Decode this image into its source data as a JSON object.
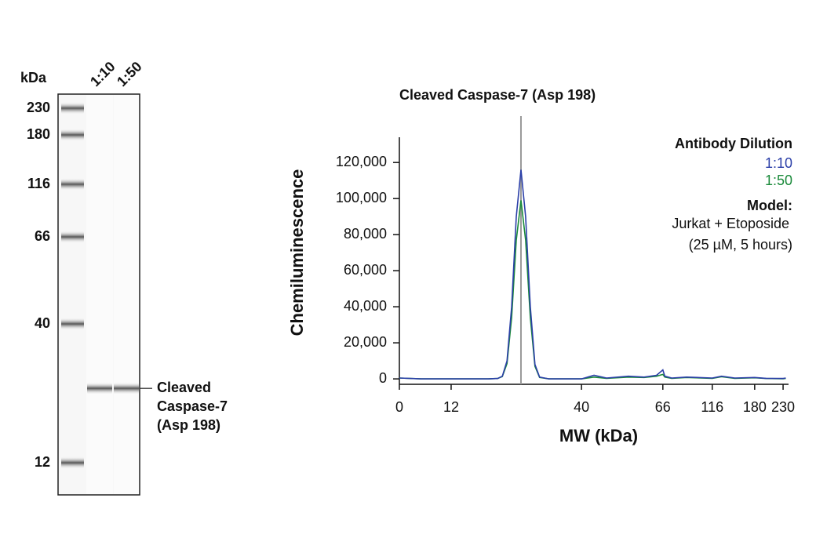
{
  "chart_data": [
    {
      "type": "blot",
      "ylabel": "kDa",
      "lanes": [
        "1:10",
        "1:50"
      ],
      "markers": [
        230,
        180,
        116,
        66,
        40,
        12
      ],
      "band_mw": 27,
      "band_label": [
        "Cleaved",
        "Caspase-7",
        "(Asp 198)"
      ]
    },
    {
      "type": "line",
      "title": "Cleaved Caspase-7 (Asp 198)",
      "xlabel": "MW (kDa)",
      "ylabel": "Chemiluminescence",
      "x": [
        0,
        5,
        10,
        15,
        20,
        22,
        23,
        24,
        25,
        26,
        27,
        28,
        29,
        30,
        31,
        33,
        36,
        40,
        44,
        48,
        55,
        60,
        64,
        66,
        68,
        75,
        90,
        116,
        130,
        150,
        180,
        200,
        230,
        235
      ],
      "series": [
        {
          "name": "1:10",
          "color": "#2b3fa8",
          "values": [
            500,
            0,
            0,
            0,
            0,
            200,
            1500,
            10000,
            40000,
            90000,
            116000,
            90000,
            40000,
            8000,
            1000,
            0,
            0,
            0,
            2000,
            500,
            1500,
            1000,
            2000,
            5000,
            1500,
            500,
            1000,
            500,
            1500,
            500,
            800,
            300,
            200,
            500
          ]
        },
        {
          "name": "1:50",
          "color": "#1a8a3a",
          "values": [
            500,
            0,
            0,
            0,
            0,
            200,
            1300,
            8500,
            34000,
            77000,
            99000,
            77000,
            34000,
            7000,
            800,
            0,
            0,
            0,
            1000,
            300,
            1000,
            800,
            1500,
            2500,
            1000,
            300,
            800,
            300,
            1200,
            300,
            600,
            200,
            100,
            300
          ]
        }
      ],
      "xlim": [
        0,
        240
      ],
      "xticks": [
        0,
        12,
        40,
        66,
        116,
        180,
        230
      ],
      "ylim": [
        -3000,
        134000
      ],
      "yticks": [
        0,
        {
          "value": 20000,
          "label": "20,000"
        },
        {
          "value": 40000,
          "label": "40,000"
        },
        {
          "value": 60000,
          "label": "60,000"
        },
        {
          "value": 80000,
          "label": "80,000"
        },
        {
          "value": 100000,
          "label": "100,000"
        },
        {
          "value": 120000,
          "label": "120,000"
        }
      ],
      "reference_x": 27,
      "reference_color": "#999999",
      "legend": "upper right",
      "legend_title": "Antibody Dilution",
      "annotation_title": "Model:",
      "annotation": [
        "Jurkat + Etoposide",
        "(25 µM, 5 hours)"
      ]
    }
  ]
}
